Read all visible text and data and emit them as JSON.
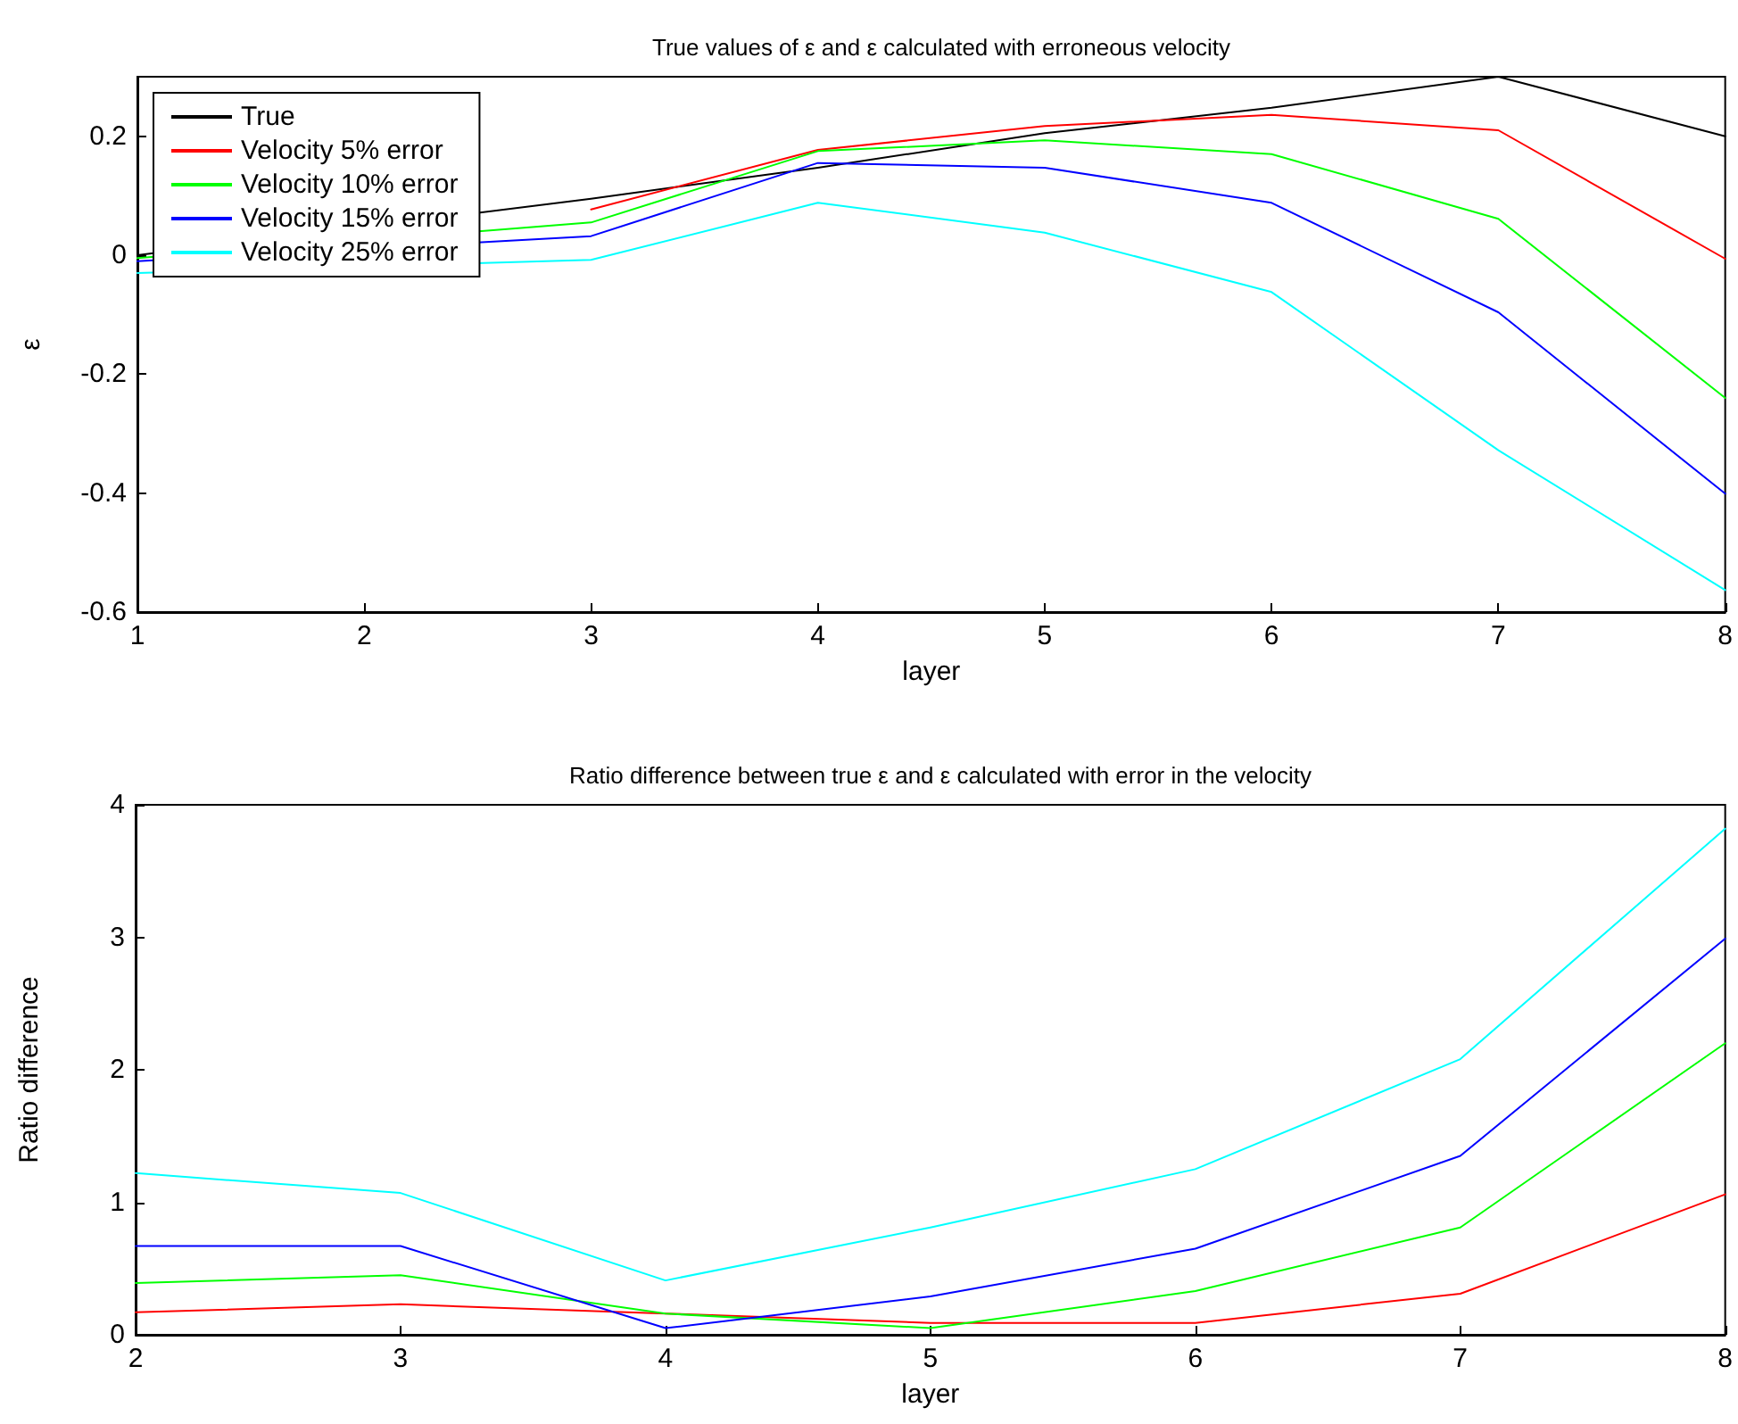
{
  "chart_data": [
    {
      "type": "line",
      "title": "True values of ε and ε calculated with erroneous velocity",
      "xlabel": "layer",
      "ylabel": "ε",
      "x": [
        1,
        2,
        3,
        4,
        5,
        6,
        7,
        8
      ],
      "series": [
        {
          "name": "True",
          "color": "#000000",
          "values": [
            0.0,
            null,
            0.095,
            0.147,
            0.205,
            0.248,
            0.3,
            0.2
          ]
        },
        {
          "name": "Velocity 5% error",
          "color": "#ff0000",
          "values": [
            null,
            null,
            0.077,
            0.177,
            0.217,
            0.236,
            0.21,
            -0.006
          ]
        },
        {
          "name": "Velocity 10% error",
          "color": "#00ff00",
          "values": [
            -0.005,
            null,
            0.055,
            0.175,
            0.193,
            0.17,
            0.061,
            -0.24
          ]
        },
        {
          "name": "Velocity 15% error",
          "color": "#0000ff",
          "values": [
            -0.01,
            null,
            0.032,
            0.155,
            0.147,
            0.088,
            -0.096,
            -0.401
          ]
        },
        {
          "name": "Velocity 25% error",
          "color": "#00ffff",
          "values": [
            -0.03,
            null,
            -0.008,
            0.088,
            0.038,
            -0.062,
            -0.328,
            -0.563
          ]
        }
      ],
      "xlim": [
        1,
        8
      ],
      "xticks": [
        1,
        2,
        3,
        4,
        5,
        6,
        7,
        8
      ],
      "ylim": [
        -0.6,
        0.3
      ],
      "yticks": [
        -0.6,
        -0.4,
        -0.2,
        0,
        0.2
      ],
      "legend": "top left",
      "grid": false
    },
    {
      "type": "line",
      "title": "Ratio difference between true ε and ε calculated with error in the velocity",
      "xlabel": "layer",
      "ylabel": "Ratio difference",
      "x": [
        2,
        3,
        4,
        5,
        6,
        7,
        8
      ],
      "series": [
        {
          "color": "#ff0000",
          "values": [
            0.17,
            0.23,
            0.16,
            0.09,
            0.09,
            0.31,
            1.06
          ]
        },
        {
          "color": "#00ff00",
          "values": [
            0.39,
            0.45,
            0.16,
            0.05,
            0.33,
            0.81,
            2.2
          ]
        },
        {
          "color": "#0000ff",
          "values": [
            0.67,
            0.67,
            0.05,
            0.29,
            0.65,
            1.35,
            2.99
          ]
        },
        {
          "color": "#00ffff",
          "values": [
            1.22,
            1.07,
            0.41,
            0.81,
            1.25,
            2.08,
            3.82
          ]
        }
      ],
      "xlim": [
        2,
        8
      ],
      "xticks": [
        2,
        3,
        4,
        5,
        6,
        7,
        8
      ],
      "ylim": [
        0,
        4
      ],
      "yticks": [
        0,
        1,
        2,
        3,
        4
      ],
      "legend": false,
      "grid": false
    }
  ]
}
